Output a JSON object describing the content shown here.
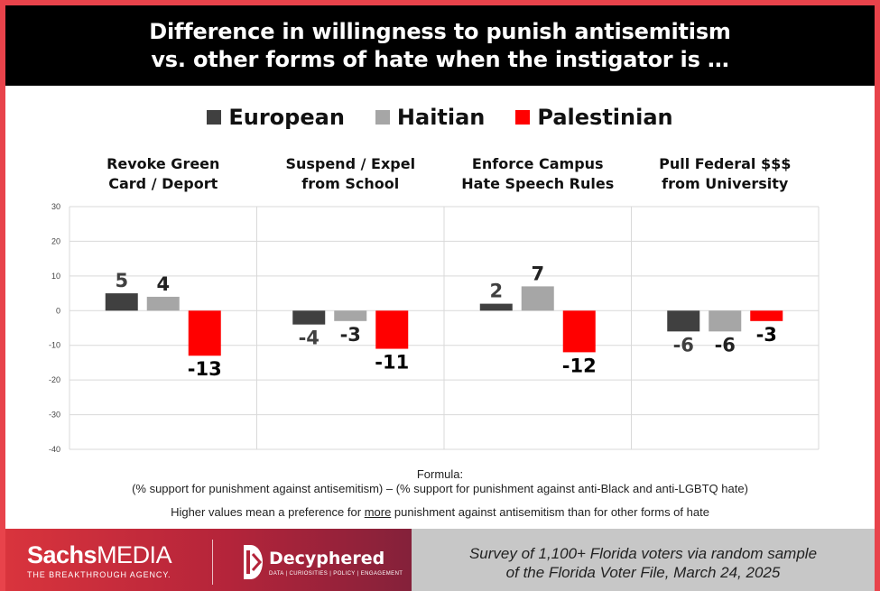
{
  "title": {
    "line1": "Difference in willingness to punish antisemitism",
    "line2": "vs. other forms of hate when the instigator is …"
  },
  "colors": {
    "European": "#404040",
    "Haitian": "#a6a6a6",
    "Palestinian": "#ff0000",
    "frame": "#e8434b"
  },
  "chart_data": {
    "type": "bar",
    "categories": [
      "Revoke Green Card / Deport",
      "Suspend / Expel from School",
      "Enforce Campus Hate Speech Rules",
      "Pull Federal $$$ from University"
    ],
    "category_lines": [
      [
        "Revoke Green",
        "Card / Deport"
      ],
      [
        "Suspend / Expel",
        "from School"
      ],
      [
        "Enforce Campus",
        "Hate Speech Rules"
      ],
      [
        "Pull Federal $$$",
        "from University"
      ]
    ],
    "series": [
      {
        "name": "European",
        "values": [
          5,
          -4,
          2,
          -6
        ]
      },
      {
        "name": "Haitian",
        "values": [
          4,
          -3,
          7,
          -6
        ]
      },
      {
        "name": "Palestinian",
        "values": [
          -13,
          -11,
          -12,
          -3
        ]
      }
    ],
    "ylim": [
      -40,
      30
    ],
    "yticks": [
      30,
      20,
      10,
      0,
      -10,
      -20,
      -30,
      -40
    ],
    "grid": true,
    "legend": "top-center",
    "xlabel": "",
    "ylabel": ""
  },
  "formula": {
    "label": "Formula:",
    "text": "(% support for punishment against antisemitism) – (% support for punishment against anti-Black and anti-LGBTQ hate)"
  },
  "note": {
    "before": "Higher values mean a preference for ",
    "emphasis": "more",
    "after": " punishment against antisemitism than for other forms of hate"
  },
  "footer": {
    "brand_bold": "Sachs",
    "brand_rest": "MEDIA",
    "brand_tagline": "THE BREAKTHROUGH AGENCY.",
    "partner_name": "Decyphered",
    "partner_tagline": "DATA | CURIOSITIES | POLICY | ENGAGEMENT",
    "survey_line1": "Survey of  1,100+ Florida voters via random sample",
    "survey_line2": "of  the Florida Voter File, March 24, 2025"
  }
}
